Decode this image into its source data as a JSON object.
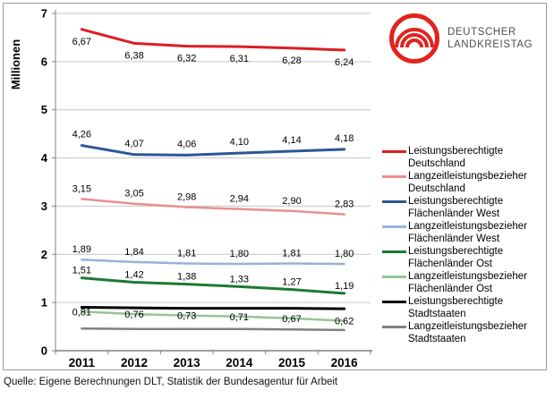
{
  "logo": {
    "line1": "DEUTSCHER",
    "line2": "LANDKREISTAG",
    "brand_color": "#e2231e"
  },
  "source": "Quelle: Eigene Berechnungen DLT, Statistik der Bundesagentur für Arbeit",
  "chart_data": {
    "type": "line",
    "title": "",
    "ylabel": "Millionen",
    "xlabel": "",
    "ylim": [
      0,
      7
    ],
    "ytick_step": 1,
    "grid": true,
    "grid_color": "#c6c6c6",
    "axis_color": "#808080",
    "label_color": "#000000",
    "legend_position": "right",
    "decimal_separator": ",",
    "categories": [
      "2011",
      "2012",
      "2013",
      "2014",
      "2015",
      "2016"
    ],
    "series": [
      {
        "name": "Leistungsberechtigte Deutschland",
        "color": "#dc1e23",
        "width": 3,
        "values": [
          6.67,
          6.38,
          6.32,
          6.31,
          6.28,
          6.24
        ],
        "show_labels": true,
        "label_offset": 17
      },
      {
        "name": "Langzeitleistungsbezieher Deutschland",
        "color": "#ec8e8e",
        "width": 2.5,
        "values": [
          3.15,
          3.05,
          2.98,
          2.94,
          2.9,
          2.83
        ],
        "show_labels": true,
        "label_offset": -8
      },
      {
        "name": "Leistungsberechtigte Flächenländer West",
        "color": "#2b5796",
        "width": 3,
        "values": [
          4.26,
          4.07,
          4.06,
          4.1,
          4.14,
          4.18
        ],
        "show_labels": true,
        "label_offset": -9
      },
      {
        "name": "Langzeitleistungsbezieher Flächenländer West",
        "color": "#95b3d7",
        "width": 2.5,
        "values": [
          1.89,
          1.84,
          1.81,
          1.8,
          1.81,
          1.8
        ],
        "show_labels": true,
        "label_offset": -8
      },
      {
        "name": "Leistungsberechtigte Flächenländer Ost",
        "color": "#1b7a33",
        "width": 3,
        "values": [
          1.51,
          1.42,
          1.38,
          1.33,
          1.27,
          1.19
        ],
        "show_labels": true,
        "label_offset": -5
      },
      {
        "name": "Langzeitleistungsbezieher Flächenländer Ost",
        "color": "#94c594",
        "width": 2.5,
        "values": [
          0.81,
          0.76,
          0.73,
          0.71,
          0.67,
          0.62
        ],
        "show_labels": true,
        "label_offset": 4
      },
      {
        "name": "Leistungsberechtigte Stadtstaaten",
        "color": "#000000",
        "width": 3,
        "values": [
          0.9,
          0.89,
          0.88,
          0.88,
          0.88,
          0.87
        ],
        "show_labels": false,
        "label_offset": 0
      },
      {
        "name": "Langzeitleistungsbezieher Stadtstaaten",
        "color": "#808080",
        "width": 2.5,
        "values": [
          0.46,
          0.45,
          0.45,
          0.45,
          0.44,
          0.43
        ],
        "show_labels": false,
        "label_offset": 0
      }
    ]
  }
}
